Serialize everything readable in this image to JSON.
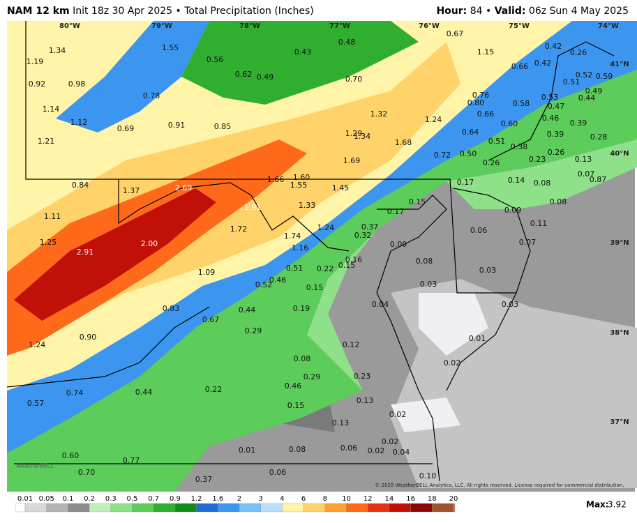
{
  "header": {
    "model": "NAM 12 km",
    "init": "Init 18z 30 Apr 2025 • Total Precipitation (Inches)",
    "hour_label": "Hour:",
    "hour": "84",
    "separator": "•",
    "valid_label": "Valid:",
    "valid": "06z Sun 4 May 2025"
  },
  "longitudes": [
    "80°W",
    "79°W",
    "78°W",
    "77°W",
    "76°W",
    "75°W",
    "74°W"
  ],
  "latitudes": [
    "41°N",
    "40°N",
    "39°N",
    "38°N",
    "37°N"
  ],
  "values": [
    "1.34",
    "1.55",
    "0.43",
    "0.48",
    "0.67",
    "1.15",
    "0.42",
    "0.26",
    "1.19",
    "0.56",
    "0.66",
    "0.42",
    "0.52",
    "0.59",
    "0.92",
    "0.98",
    "0.62",
    "0.49",
    "0.70",
    "0.51",
    "0.49",
    "0.78",
    "0.76",
    "0.53",
    "0.44",
    "0.80",
    "0.58",
    "0.47",
    "1.14",
    "1.32",
    "0.66",
    "1.12",
    "1.24",
    "0.46",
    "0.39",
    "0.69",
    "0.91",
    "0.85",
    "0.60",
    "1.29",
    "1.34",
    "0.64",
    "0.39",
    "0.28",
    "1.21",
    "1.68",
    "0.51",
    "0.38",
    "0.72",
    "0.50",
    "0.26",
    "1.69",
    "0.23",
    "0.13",
    "0.26",
    "1.66",
    "1.60",
    "0.14",
    "0.08",
    "0.07",
    "0.87",
    "0.84",
    "1.55",
    "1.45",
    "0.17",
    "1.37",
    "2.69",
    "0.15",
    "0.08",
    "1.91",
    "1.33",
    "0.09",
    "0.17",
    "1.11",
    "0.11",
    "1.72",
    "1.24",
    "0.37",
    "0.06",
    "1.74",
    "0.32",
    "1.25",
    "2.00",
    "0.07",
    "0.00",
    "1.16",
    "2.91",
    "0.16",
    "0.08",
    "0.51",
    "0.22",
    "0.15",
    "0.03",
    "1.09",
    "0.46",
    "0.03",
    "0.52",
    "0.15",
    "0.19",
    "0.04",
    "0.03",
    "0.83",
    "0.44",
    "0.67",
    "0.29",
    "0.01",
    "0.90",
    "1.24",
    "0.12",
    "0.08",
    "0.02",
    "0.23",
    "0.46",
    "0.29",
    "0.22",
    "0.74",
    "0.44",
    "0.57",
    "0.13",
    "0.15",
    "0.02",
    "0.13",
    "0.02",
    "0.08",
    "0.06",
    "0.01",
    "0.02",
    "0.04",
    "0.60",
    "0.77",
    "0.06",
    "0.70",
    "0.37",
    "0.10"
  ],
  "colorbar": {
    "labels": [
      "0.01",
      "0.05",
      "0.1",
      "0.2",
      "0.3",
      "0.5",
      "0.7",
      "0.9",
      "1.2",
      "1.6",
      "2",
      "3",
      "4",
      "6",
      "8",
      "10",
      "12",
      "14",
      "16",
      "18",
      "20"
    ],
    "colors": [
      "#ffffff",
      "#d8d8d8",
      "#b4b4b4",
      "#8c8c8c",
      "#bff0b8",
      "#8ee089",
      "#5ccc5a",
      "#2fae2f",
      "#148c1c",
      "#1e6ed6",
      "#3c96f0",
      "#78c0f5",
      "#b8e0f8",
      "#fff4a8",
      "#ffd36a",
      "#ffa030",
      "#ff6a1a",
      "#e83010",
      "#c01008",
      "#8c0404",
      "#a0522d",
      "#c08070",
      "#e0a8b0",
      "#e070c8",
      "#b030b0",
      "#8010a0"
    ]
  },
  "max_label": "Max:",
  "max": "3.92",
  "copyright": "© 2025 WeatherBELL Analytics, LLC. All rights reserved. License required for commercial distribution.",
  "watermark": "WeatherBELL"
}
